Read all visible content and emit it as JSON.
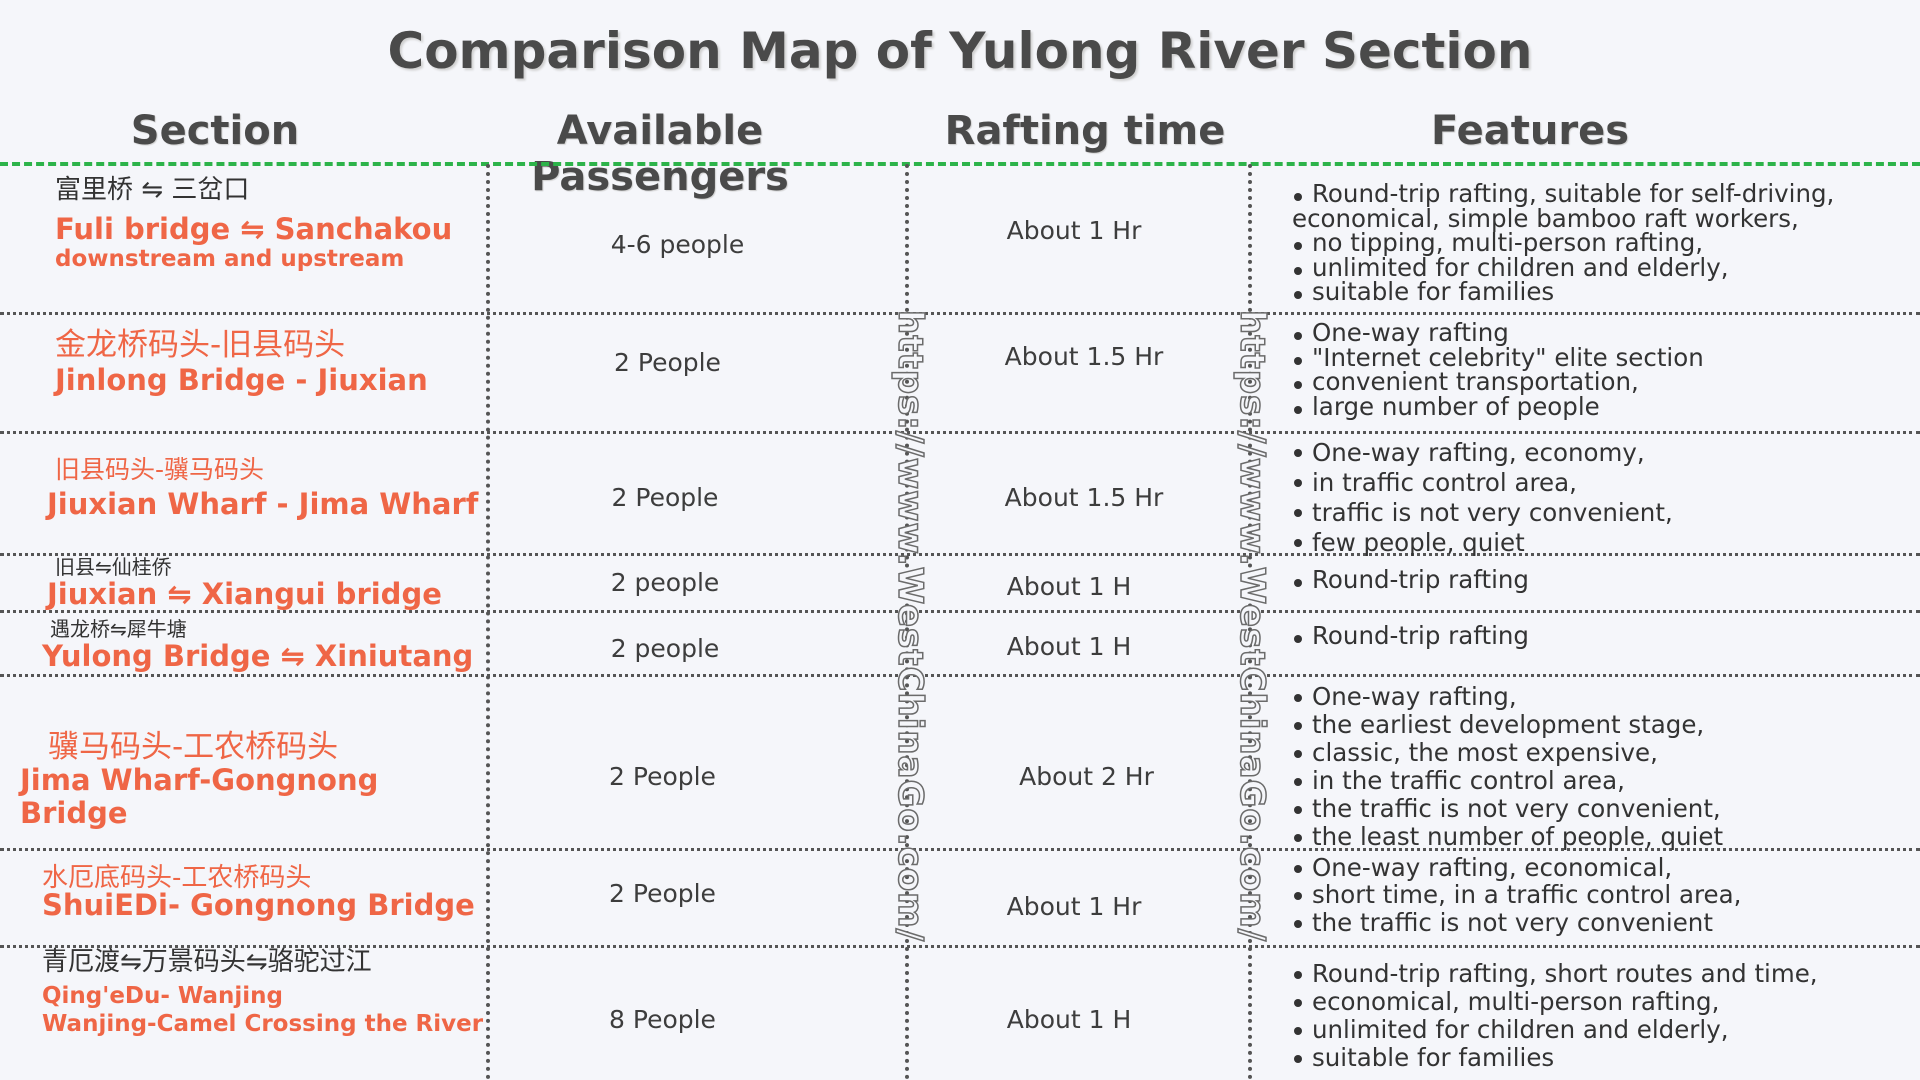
{
  "title": "Comparison Map of Yulong River Section",
  "headers": {
    "section": "Section",
    "passengers": "Available Passengers",
    "time": "Rafting time",
    "features": "Features"
  },
  "watermark": "https://www.WestChinaGo.com/",
  "rows": [
    {
      "zh": "富里桥 ⇋ 三岔口",
      "en": "Fuli bridge ⇋ Sanchakou",
      "en2": "downstream and upstream",
      "passengers": "4-6 people",
      "time": "About 1 Hr",
      "features": [
        "Round-trip rafting, suitable for self-driving,",
        "economical, simple bamboo raft workers,",
        "no tipping, multi-person rafting,",
        "unlimited  for children and elderly,",
        "suitable for families"
      ]
    },
    {
      "zh": "金龙桥码头-旧县码头",
      "en": "Jinlong Bridge - Jiuxian",
      "passengers": "2 People",
      "time": "About 1.5 Hr",
      "features": [
        "One-way rafting",
        "\"Internet celebrity\" elite section",
        "convenient transportation,",
        "large number of people"
      ]
    },
    {
      "zh": "旧县码头-骥马码头",
      "en": "Jiuxian Wharf - Jima Wharf",
      "passengers": "2 People",
      "time": "About 1.5 Hr",
      "features": [
        "One-way rafting, economy,",
        "in traffic control area,",
        "traffic is not very convenient,",
        "few people, quiet"
      ]
    },
    {
      "zh": "旧县⇋仙桂侨",
      "en": "Jiuxian ⇋ Xiangui bridge",
      "passengers": "2 people",
      "time": "About 1 H",
      "features": [
        "Round-trip rafting"
      ]
    },
    {
      "zh": "遇龙桥⇋犀牛塘",
      "en": "Yulong Bridge ⇋ Xiniutang",
      "passengers": "2 people",
      "time": "About 1 H",
      "features": [
        "Round-trip rafting"
      ]
    },
    {
      "zh": "骥马码头-工农桥码头",
      "en": "Jima Wharf-Gongnong Bridge",
      "passengers": "2 People",
      "time": "About 2 Hr",
      "features": [
        "One-way rafting,",
        "the earliest development stage,",
        "classic, the most expensive,",
        "in the traffic control area,",
        "the traffic is not very convenient,",
        "the least number of people, quiet"
      ]
    },
    {
      "zh": "水厄底码头-工农桥码头",
      "en": "ShuiEDi- Gongnong Bridge",
      "passengers": "2 People",
      "time": "About 1 Hr",
      "features": [
        "One-way rafting, economical,",
        "short time, in a traffic control area,",
        "the traffic is not very convenient"
      ]
    },
    {
      "zh": "青厄渡⇋万景码头⇋骆驼过江",
      "en": "Qing'eDu- Wanjing",
      "en2": "Wanjing-Camel Crossing the River",
      "passengers": "8 People",
      "time": "About 1 H",
      "features": [
        "Round-trip rafting, short routes and time,",
        "economical, multi-person rafting,",
        "unlimited for children and elderly,",
        "suitable for families"
      ]
    }
  ]
}
